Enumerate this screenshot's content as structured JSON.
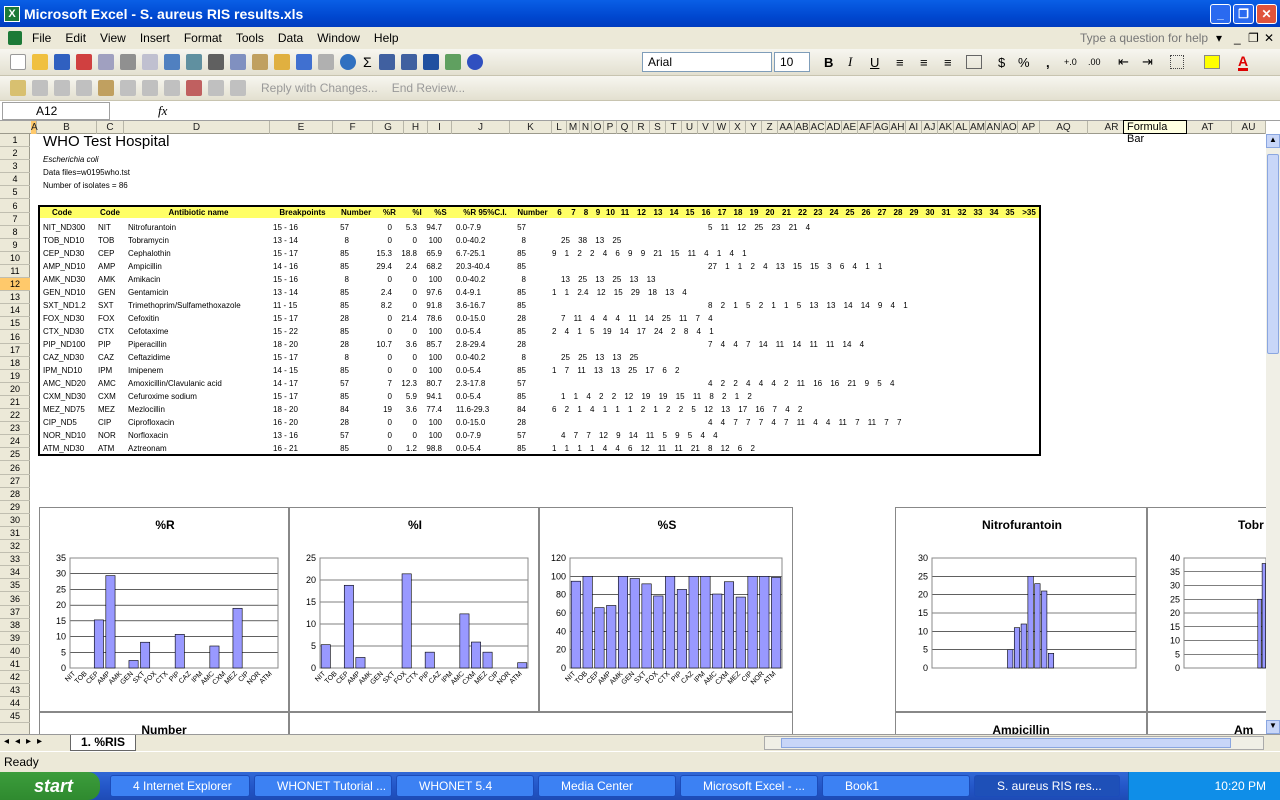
{
  "window": {
    "title": "Microsoft Excel - S. aureus RIS results.xls"
  },
  "menu": [
    "File",
    "Edit",
    "View",
    "Insert",
    "Format",
    "Tools",
    "Data",
    "Window",
    "Help"
  ],
  "help_placeholder": "Type a question for help",
  "toolbar": {
    "font": "Arial",
    "size": "10",
    "bold": "B",
    "italic": "I",
    "underline": "U",
    "currency": "$",
    "percent": "%",
    "comma": ",",
    "reply": "Reply with Changes...",
    "end_review": "End Review..."
  },
  "formula": {
    "namebox": "A12",
    "fx": "fx"
  },
  "tooltip": "Formula Bar",
  "columns": [
    "A",
    "B",
    "C",
    "D",
    "E",
    "F",
    "G",
    "H",
    "I",
    "J",
    "K",
    "L",
    "M",
    "N",
    "O",
    "P",
    "Q",
    "R",
    "S",
    "T",
    "U",
    "V",
    "W",
    "X",
    "Y",
    "Z",
    "AA",
    "AB",
    "AC",
    "AD",
    "AE",
    "AF",
    "AG",
    "AH",
    "AI",
    "AJ",
    "AK",
    "AL",
    "AM",
    "AN",
    "AO",
    "AP",
    "AQ",
    "AR",
    "AS",
    "AT",
    "AU"
  ],
  "sheet": {
    "title": "WHO Test Hospital",
    "organism": "Escherichia coli",
    "datafiles": "Data files=w0195who.tst",
    "isolates": "Number of isolates = 86",
    "headers": [
      "Code",
      "Code",
      "Antibiotic name",
      "Breakpoints",
      "Number",
      "%R",
      "%I",
      "%S",
      "%R 95%C.I.",
      "Number",
      "6",
      "7",
      "8",
      "9",
      "10",
      "11",
      "12",
      "13",
      "14",
      "15",
      "16",
      "17",
      "18",
      "19",
      "20",
      "21",
      "22",
      "23",
      "24",
      "25",
      "26",
      "27",
      "28",
      "29",
      "30",
      "31",
      "32",
      "33",
      "34",
      "35",
      ">35"
    ],
    "rows": [
      [
        "NIT_ND300",
        "NIT",
        "Nitrofurantoin",
        "15 - 16",
        "57",
        "0",
        "5.3",
        "94.7",
        "0.0-7.9",
        "57"
      ],
      [
        "TOB_ND10",
        "TOB",
        "Tobramycin",
        "13 - 14",
        "8",
        "0",
        "0",
        "100",
        "0.0-40.2",
        "8"
      ],
      [
        "CEP_ND30",
        "CEP",
        "Cephalothin",
        "15 - 17",
        "85",
        "15.3",
        "18.8",
        "65.9",
        "6.7-25.1",
        "85"
      ],
      [
        "AMP_ND10",
        "AMP",
        "Ampicillin",
        "14 - 16",
        "85",
        "29.4",
        "2.4",
        "68.2",
        "20.3-40.4",
        "85"
      ],
      [
        "AMK_ND30",
        "AMK",
        "Amikacin",
        "15 - 16",
        "8",
        "0",
        "0",
        "100",
        "0.0-40.2",
        "8"
      ],
      [
        "GEN_ND10",
        "GEN",
        "Gentamicin",
        "13 - 14",
        "85",
        "2.4",
        "0",
        "97.6",
        "0.4-9.1",
        "85"
      ],
      [
        "SXT_ND1.2",
        "SXT",
        "Trimethoprim/Sulfamethoxazole",
        "11 - 15",
        "85",
        "8.2",
        "0",
        "91.8",
        "3.6-16.7",
        "85"
      ],
      [
        "FOX_ND30",
        "FOX",
        "Cefoxitin",
        "15 - 17",
        "28",
        "0",
        "21.4",
        "78.6",
        "0.0-15.0",
        "28"
      ],
      [
        "CTX_ND30",
        "CTX",
        "Cefotaxime",
        "15 - 22",
        "85",
        "0",
        "0",
        "100",
        "0.0-5.4",
        "85"
      ],
      [
        "PIP_ND100",
        "PIP",
        "Piperacillin",
        "18 - 20",
        "28",
        "10.7",
        "3.6",
        "85.7",
        "2.8-29.4",
        "28"
      ],
      [
        "CAZ_ND30",
        "CAZ",
        "Ceftazidime",
        "15 - 17",
        "8",
        "0",
        "0",
        "100",
        "0.0-40.2",
        "8"
      ],
      [
        "IPM_ND10",
        "IPM",
        "Imipenem",
        "14 - 15",
        "85",
        "0",
        "0",
        "100",
        "0.0-5.4",
        "85"
      ],
      [
        "AMC_ND20",
        "AMC",
        "Amoxicillin/Clavulanic acid",
        "14 - 17",
        "57",
        "7",
        "12.3",
        "80.7",
        "2.3-17.8",
        "57"
      ],
      [
        "CXM_ND30",
        "CXM",
        "Cefuroxime sodium",
        "15 - 17",
        "85",
        "0",
        "5.9",
        "94.1",
        "0.0-5.4",
        "85"
      ],
      [
        "MEZ_ND75",
        "MEZ",
        "Mezlocillin",
        "18 - 20",
        "84",
        "19",
        "3.6",
        "77.4",
        "11.6-29.3",
        "84"
      ],
      [
        "CIP_ND5",
        "CIP",
        "Ciprofloxacin",
        "16 - 20",
        "28",
        "0",
        "0",
        "100",
        "0.0-15.0",
        "28"
      ],
      [
        "NOR_ND10",
        "NOR",
        "Norfloxacin",
        "13 - 16",
        "57",
        "0",
        "0",
        "100",
        "0.0-7.9",
        "57"
      ],
      [
        "ATM_ND30",
        "ATM",
        "Aztreonam",
        "16 - 21",
        "85",
        "0",
        "1.2",
        "98.8",
        "0.0-5.4",
        "85"
      ]
    ],
    "dist": [
      "5 11 12 25 23 21 4",
      "25 38 13 25",
      "9 1 2 2 4 6 9 9 21 15 11 4 1 4 1",
      "27 1 1 2 4 13 15 15 3 6 4 1 1",
      "13 25 13 25 13 13",
      "1 1 2.4 12 15 29 18 13 4",
      "8 2 1 5 2 1 1 5 13 13 14 14 9 4 1",
      "7 11 4 4 4 11 14 25 11 7 4",
      "2 4 1 5 19 14 17 24 2 8 4 1",
      "7 4 4 7 14 11 14 11 11 14 4",
      "25 25 13 13 25",
      "1 7 11 13 13 25 17 6 2",
      "4 2 2 4 4 4 2 11 16 16 21 9 5 4",
      "1 1 4 2 2 12 19 19 15 11 8 2 1 2",
      "6 2 1 4 1 1 1 2 1 2 2 5 12 13 17 16 7 4 2",
      "4 4 7 7 7 4 7 11 4 4 11 7 11 7 7",
      "4 7 7 12 9 14 11 5 9 5 4 4",
      "1 1 1 1 4 4 6 12 11 11 21 8 12 6 2"
    ]
  },
  "charts": [
    {
      "title": "%R",
      "ymax": 35,
      "yticks": [
        "0",
        "5",
        "10",
        "15",
        "20",
        "25",
        "30",
        "35"
      ],
      "values": [
        0,
        0,
        15.3,
        29.4,
        0,
        2.4,
        8.2,
        0,
        0,
        10.7,
        0,
        0,
        7,
        0,
        19,
        0,
        0,
        0
      ]
    },
    {
      "title": "%I",
      "ymax": 25,
      "yticks": [
        "0",
        "5",
        "10",
        "15",
        "20",
        "25"
      ],
      "values": [
        5.3,
        0,
        18.8,
        2.4,
        0,
        0,
        0,
        21.4,
        0,
        3.6,
        0,
        0,
        12.3,
        5.9,
        3.6,
        0,
        0,
        1.2
      ]
    },
    {
      "title": "%S",
      "ymax": 120,
      "yticks": [
        "0",
        "20",
        "40",
        "60",
        "80",
        "100",
        "120"
      ],
      "values": [
        94.7,
        100,
        65.9,
        68.2,
        100,
        97.6,
        91.8,
        78.6,
        100,
        85.7,
        100,
        100,
        80.7,
        94.1,
        77.4,
        100,
        100,
        98.8
      ]
    },
    {
      "title": "Nitrofurantoin",
      "ymax": 30,
      "yticks": [
        "0",
        "5",
        "10",
        "15",
        "20",
        "25",
        "30"
      ],
      "values": [
        0,
        0,
        0,
        0,
        0,
        0,
        0,
        0,
        0,
        0,
        0,
        5,
        11,
        12,
        25,
        23,
        21,
        4,
        0,
        0,
        0,
        0,
        0,
        0,
        0,
        0,
        0,
        0,
        0,
        0
      ]
    },
    {
      "title": "Tobr",
      "ymax": 40,
      "yticks": [
        "0",
        "5",
        "10",
        "15",
        "20",
        "25",
        "30",
        "35",
        "40"
      ],
      "values": [
        0,
        0,
        0,
        0,
        0,
        0,
        0,
        0,
        0,
        0,
        0,
        0,
        0,
        0,
        0,
        0,
        0,
        25,
        38
      ]
    }
  ],
  "chart_labels": [
    "NIT",
    "TOB",
    "CEP",
    "AMP",
    "AMK",
    "GEN",
    "SXT",
    "FOX",
    "CTX",
    "PIP",
    "CAZ",
    "IPM",
    "AMC",
    "CXM",
    "MEZ",
    "CIP",
    "NOR",
    "ATM"
  ],
  "bottom_titles": {
    "number": "Number",
    "ampicillin": "Ampicillin",
    "am": "Am"
  },
  "tab": "1. %RIS",
  "status": "Ready",
  "taskbar": {
    "start": "start",
    "items": [
      "4 Internet Explorer",
      "WHONET Tutorial ...",
      "WHONET 5.4",
      "Media Center",
      "Microsoft Excel - ...",
      "Book1",
      "S. aureus RIS res..."
    ],
    "time": "10:20 PM"
  },
  "colors": {
    "bar": "#9999ff",
    "header_yellow": "#ffff66",
    "xp_blue": "#0048d0"
  }
}
